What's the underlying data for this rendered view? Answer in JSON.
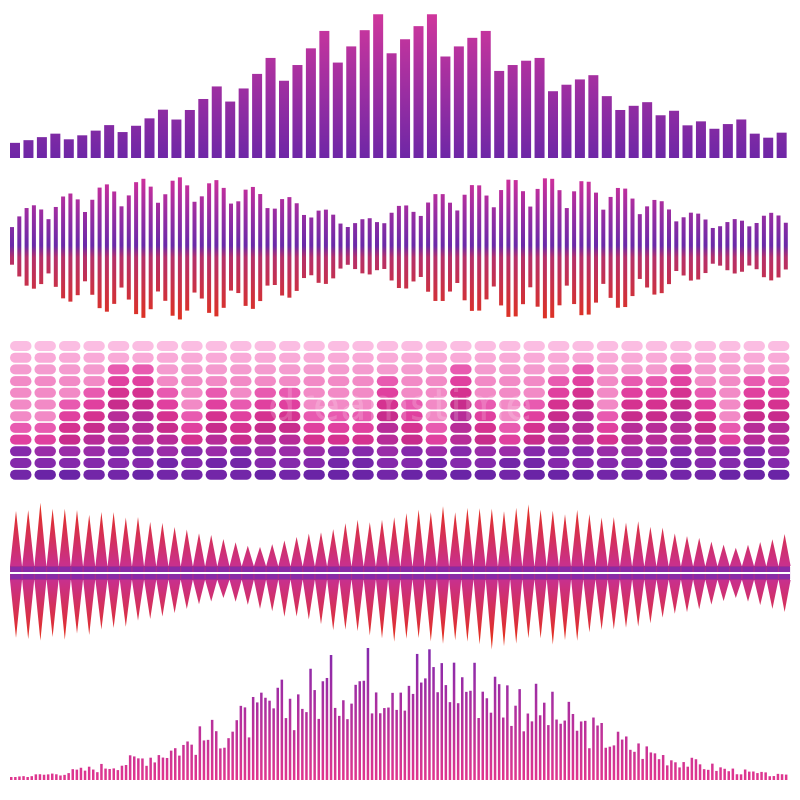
{
  "watermark": "dreamstime"
}
